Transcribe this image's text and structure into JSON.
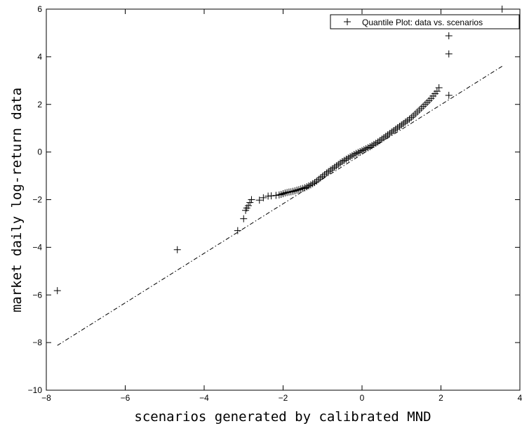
{
  "chart_data": {
    "type": "scatter",
    "title": "",
    "xlabel": "scenarios generated by calibrated MND",
    "ylabel": "market daily log-return data",
    "xlim": [
      -8,
      4
    ],
    "ylim": [
      -10,
      6
    ],
    "xticks": [
      -8,
      -6,
      -4,
      -2,
      0,
      2,
      4
    ],
    "yticks": [
      -10,
      -8,
      -6,
      -4,
      -2,
      0,
      2,
      4,
      6
    ],
    "xtick_labels": [
      "−8",
      "−6",
      "−4",
      "−2",
      "0",
      "2",
      "4"
    ],
    "ytick_labels": [
      "−10",
      "−8",
      "−6",
      "−4",
      "−2",
      "0",
      "2",
      "4",
      "6"
    ],
    "grid": false,
    "legend": {
      "position": "top-right",
      "entries": [
        "Quantile Plot: data vs. scenarios"
      ]
    },
    "series": [
      {
        "name": "Quantile Plot: data vs. scenarios",
        "marker": "+",
        "color": "#000000",
        "x": [
          -7.72,
          -4.68,
          -3.15,
          -3.0,
          -2.95,
          -2.92,
          -2.88,
          -2.84,
          -2.8,
          -2.6,
          -2.5,
          -2.38,
          -2.3,
          -2.18,
          -2.1,
          -2.05,
          -2.0,
          -1.95,
          -1.9,
          -1.85,
          -1.8,
          -1.75,
          -1.7,
          -1.65,
          -1.6,
          -1.55,
          -1.5,
          -1.45,
          -1.4,
          -1.35,
          -1.3,
          -1.25,
          -1.2,
          -1.15,
          -1.1,
          -1.05,
          -1.0,
          -0.95,
          -0.9,
          -0.85,
          -0.8,
          -0.75,
          -0.7,
          -0.65,
          -0.6,
          -0.55,
          -0.5,
          -0.45,
          -0.4,
          -0.35,
          -0.3,
          -0.25,
          -0.2,
          -0.15,
          -0.1,
          -0.05,
          0.0,
          0.05,
          0.1,
          0.15,
          0.2,
          0.25,
          0.3,
          0.35,
          0.4,
          0.45,
          0.5,
          0.55,
          0.6,
          0.65,
          0.7,
          0.75,
          0.8,
          0.85,
          0.9,
          0.95,
          1.0,
          1.05,
          1.1,
          1.15,
          1.2,
          1.25,
          1.3,
          1.35,
          1.4,
          1.45,
          1.5,
          1.55,
          1.6,
          1.65,
          1.7,
          1.75,
          1.8,
          1.85,
          1.9,
          1.95,
          2.2,
          2.2,
          2.2,
          3.55
        ],
        "y": [
          -5.82,
          -4.1,
          -3.3,
          -2.8,
          -2.45,
          -2.35,
          -2.25,
          -2.12,
          -2.0,
          -2.02,
          -1.92,
          -1.85,
          -1.84,
          -1.82,
          -1.8,
          -1.78,
          -1.75,
          -1.72,
          -1.7,
          -1.68,
          -1.67,
          -1.65,
          -1.63,
          -1.6,
          -1.58,
          -1.55,
          -1.53,
          -1.5,
          -1.46,
          -1.42,
          -1.38,
          -1.33,
          -1.28,
          -1.22,
          -1.15,
          -1.08,
          -1.02,
          -0.95,
          -0.88,
          -0.82,
          -0.76,
          -0.7,
          -0.64,
          -0.58,
          -0.52,
          -0.46,
          -0.4,
          -0.35,
          -0.3,
          -0.25,
          -0.2,
          -0.15,
          -0.1,
          -0.06,
          -0.02,
          0.02,
          0.06,
          0.1,
          0.14,
          0.18,
          0.22,
          0.27,
          0.32,
          0.37,
          0.42,
          0.48,
          0.54,
          0.6,
          0.66,
          0.72,
          0.78,
          0.84,
          0.9,
          0.96,
          1.02,
          1.08,
          1.14,
          1.2,
          1.26,
          1.32,
          1.38,
          1.45,
          1.52,
          1.6,
          1.68,
          1.76,
          1.84,
          1.92,
          2.0,
          2.08,
          2.16,
          2.25,
          2.35,
          2.45,
          2.55,
          2.7,
          2.38,
          4.12,
          4.88,
          6.0
        ]
      },
      {
        "name": "",
        "style": "dash-dot",
        "color": "#000000",
        "x": [
          -7.72,
          3.55
        ],
        "y": [
          -8.12,
          3.6
        ]
      }
    ]
  }
}
